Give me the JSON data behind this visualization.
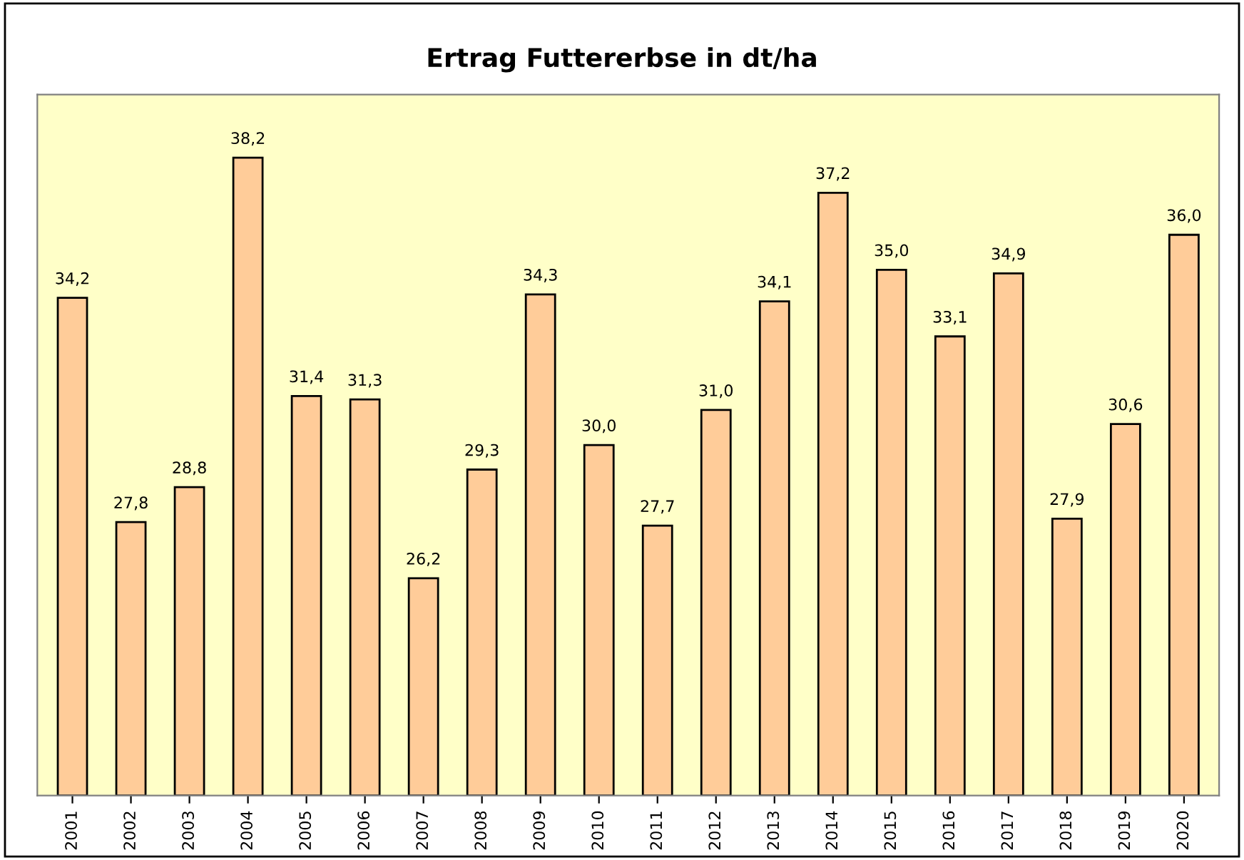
{
  "chart_data": {
    "type": "bar",
    "title": "Ertrag Futtererbse in dt/ha",
    "categories": [
      "2001",
      "2002",
      "2003",
      "2004",
      "2005",
      "2006",
      "2007",
      "2008",
      "2009",
      "2010",
      "2011",
      "2012",
      "2013",
      "2014",
      "2015",
      "2016",
      "2017",
      "2018",
      "2019",
      "2020"
    ],
    "values": [
      34.2,
      27.8,
      28.8,
      38.2,
      31.4,
      31.3,
      26.2,
      29.3,
      34.3,
      30.0,
      27.7,
      31.0,
      34.1,
      37.2,
      35.0,
      33.1,
      34.9,
      27.9,
      30.6,
      36.0
    ],
    "value_labels": [
      "34,2",
      "27,8",
      "28,8",
      "38,2",
      "31,4",
      "31,3",
      "26,2",
      "29,3",
      "34,3",
      "30,0",
      "27,7",
      "31,0",
      "34,1",
      "37,2",
      "35,0",
      "33,1",
      "34,9",
      "27,9",
      "30,6",
      "36,0"
    ],
    "color": "#ffcc99",
    "ylim": [
      20,
      40
    ],
    "tick_labels": "x",
    "grid": false,
    "legend": false
  }
}
